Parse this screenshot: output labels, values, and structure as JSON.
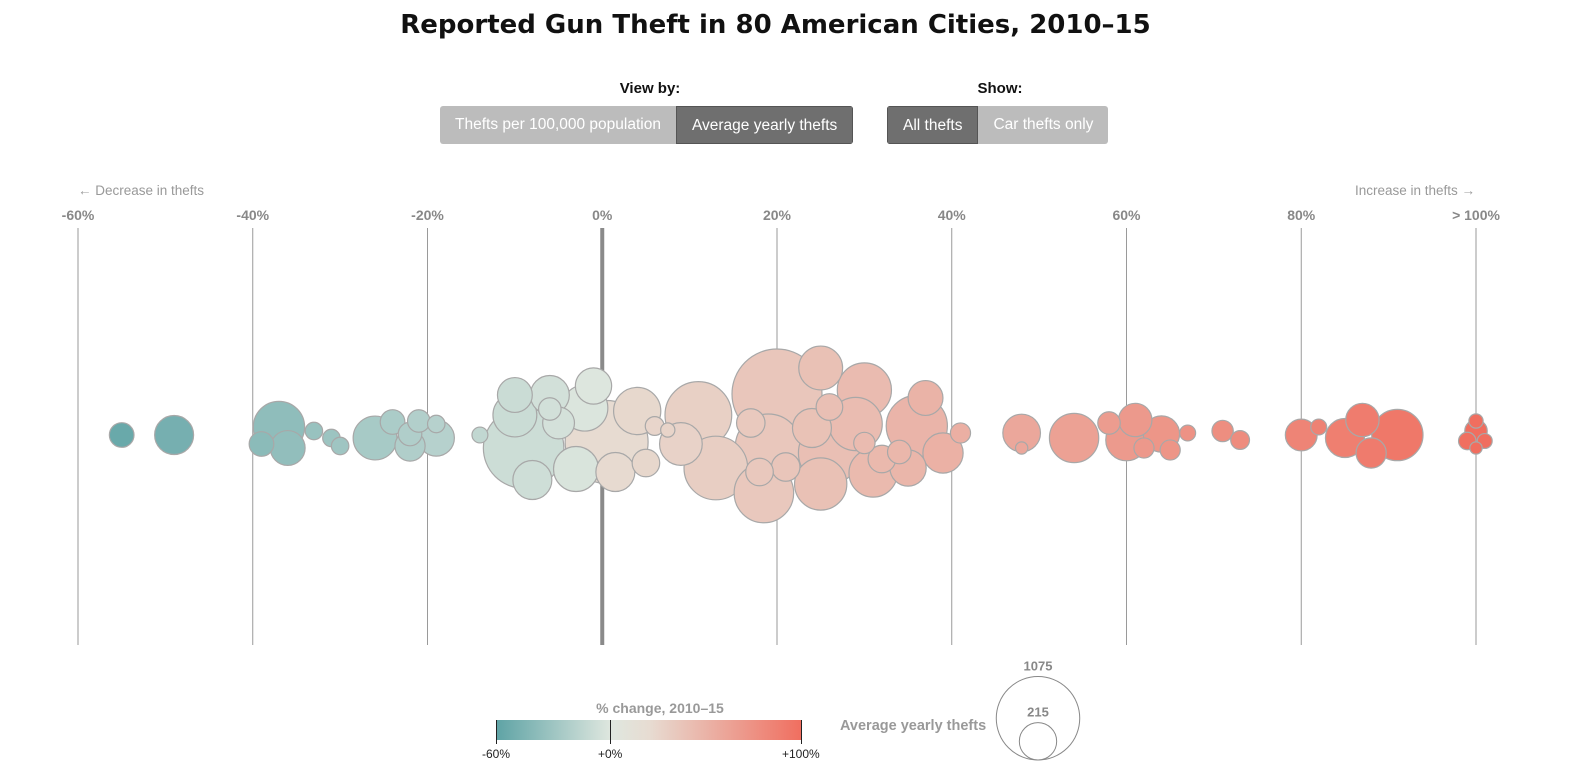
{
  "title": "Reported Gun Theft in 80 American Cities, 2010–15",
  "controls": {
    "view_by_label": "View by:",
    "view_by_options": [
      "Thefts per 100,000 population",
      "Average yearly thefts"
    ],
    "view_by_selected": "Average yearly thefts",
    "show_label": "Show:",
    "show_options": [
      "All thefts",
      "Car thefts only"
    ],
    "show_selected": "All thefts"
  },
  "axis": {
    "decrease_label": "← Decrease in thefts",
    "increase_label": "Increase in thefts →",
    "ticks": [
      "-60%",
      "-40%",
      "-20%",
      "0%",
      "20%",
      "40%",
      "60%",
      "80%",
      "> 100%"
    ],
    "tick_values": [
      -60,
      -40,
      -20,
      0,
      20,
      40,
      60,
      80,
      100
    ]
  },
  "legend": {
    "color_title": "% change, 2010–15",
    "color_labels": [
      "-60%",
      "+0%",
      "+100%"
    ],
    "color_stops": [
      "#5ea3a5",
      "#dfe7df",
      "#e7dcd2",
      "#f06e5f"
    ],
    "size_title": "Average yearly thefts",
    "size_values": [
      1075,
      215
    ]
  },
  "chart_data": {
    "type": "scatter",
    "xlabel": "% change, 2010–15",
    "xlim": [
      -60,
      100
    ],
    "size_label": "Average yearly thefts",
    "points": [
      {
        "x": -55,
        "y": 0,
        "size": 60
      },
      {
        "x": -49,
        "y": 0,
        "size": 150
      },
      {
        "x": -37,
        "y": 8,
        "size": 260
      },
      {
        "x": -39,
        "y": -9,
        "size": 60
      },
      {
        "x": -36,
        "y": -13,
        "size": 120
      },
      {
        "x": -33,
        "y": 4,
        "size": 30
      },
      {
        "x": -31,
        "y": -3,
        "size": 30
      },
      {
        "x": -30,
        "y": -11,
        "size": 30
      },
      {
        "x": -26,
        "y": -3,
        "size": 190
      },
      {
        "x": -24,
        "y": 13,
        "size": 60
      },
      {
        "x": -22,
        "y": 1,
        "size": 55
      },
      {
        "x": -22,
        "y": -11,
        "size": 90
      },
      {
        "x": -21,
        "y": 14,
        "size": 50
      },
      {
        "x": -19,
        "y": -3,
        "size": 130
      },
      {
        "x": -19,
        "y": 11,
        "size": 30
      },
      {
        "x": -14,
        "y": 0,
        "size": 25
      },
      {
        "x": -10,
        "y": 40,
        "size": 120
      },
      {
        "x": -10,
        "y": 20,
        "size": 190
      },
      {
        "x": -9,
        "y": -13,
        "size": 640
      },
      {
        "x": -8,
        "y": -45,
        "size": 150
      },
      {
        "x": -6,
        "y": 40,
        "size": 150
      },
      {
        "x": -6,
        "y": 26,
        "size": 50
      },
      {
        "x": -5,
        "y": 12,
        "size": 100
      },
      {
        "x": -3,
        "y": -34,
        "size": 200
      },
      {
        "x": -2,
        "y": 27,
        "size": 210
      },
      {
        "x": -1,
        "y": 49,
        "size": 130
      },
      {
        "x": 0.5,
        "y": -7,
        "size": 680
      },
      {
        "x": 1.5,
        "y": -37,
        "size": 150
      },
      {
        "x": 4,
        "y": 24,
        "size": 220
      },
      {
        "x": 5,
        "y": -28,
        "size": 75
      },
      {
        "x": 6,
        "y": 9,
        "size": 35
      },
      {
        "x": 7.5,
        "y": 5,
        "size": 20
      },
      {
        "x": 9,
        "y": -9,
        "size": 180
      },
      {
        "x": 11,
        "y": 20,
        "size": 440
      },
      {
        "x": 13,
        "y": -33,
        "size": 400
      },
      {
        "x": 17,
        "y": 12,
        "size": 80
      },
      {
        "x": 18,
        "y": -37,
        "size": 75
      },
      {
        "x": 18.5,
        "y": -58,
        "size": 350
      },
      {
        "x": 19,
        "y": -12,
        "size": 430
      },
      {
        "x": 20,
        "y": 41,
        "size": 800
      },
      {
        "x": 21,
        "y": -32,
        "size": 80
      },
      {
        "x": 24,
        "y": 7,
        "size": 150
      },
      {
        "x": 25,
        "y": 67,
        "size": 190
      },
      {
        "x": 25,
        "y": -49,
        "size": 270
      },
      {
        "x": 26,
        "y": 28,
        "size": 70
      },
      {
        "x": 26,
        "y": -18,
        "size": 380
      },
      {
        "x": 29,
        "y": 11,
        "size": 280
      },
      {
        "x": 30,
        "y": 45,
        "size": 290
      },
      {
        "x": 30,
        "y": -8,
        "size": 45
      },
      {
        "x": 31,
        "y": -38,
        "size": 230
      },
      {
        "x": 32,
        "y": -24,
        "size": 75
      },
      {
        "x": 34,
        "y": -17,
        "size": 55
      },
      {
        "x": 35,
        "y": -33,
        "size": 130
      },
      {
        "x": 36,
        "y": 9,
        "size": 370
      },
      {
        "x": 37,
        "y": 37,
        "size": 120
      },
      {
        "x": 39,
        "y": -18,
        "size": 160
      },
      {
        "x": 41,
        "y": 2,
        "size": 40
      },
      {
        "x": 48,
        "y": 2,
        "size": 140
      },
      {
        "x": 48,
        "y": -13,
        "size": 15
      },
      {
        "x": 54,
        "y": -3,
        "size": 240
      },
      {
        "x": 58,
        "y": 12,
        "size": 50
      },
      {
        "x": 60,
        "y": -5,
        "size": 170
      },
      {
        "x": 61,
        "y": 15,
        "size": 110
      },
      {
        "x": 62,
        "y": -13,
        "size": 40
      },
      {
        "x": 64,
        "y": 1,
        "size": 130
      },
      {
        "x": 65,
        "y": -15,
        "size": 40
      },
      {
        "x": 67,
        "y": 2,
        "size": 25
      },
      {
        "x": 71,
        "y": 4,
        "size": 45
      },
      {
        "x": 73,
        "y": -5,
        "size": 35
      },
      {
        "x": 80,
        "y": 0,
        "size": 100
      },
      {
        "x": 82,
        "y": 8,
        "size": 25
      },
      {
        "x": 85,
        "y": -3,
        "size": 150
      },
      {
        "x": 87,
        "y": 15,
        "size": 110
      },
      {
        "x": 88,
        "y": -18,
        "size": 90
      },
      {
        "x": 91,
        "y": 0,
        "size": 260
      },
      {
        "x": 100,
        "y": 14,
        "size": 20
      },
      {
        "x": 100,
        "y": 4,
        "size": 50
      },
      {
        "x": 99,
        "y": -6,
        "size": 30
      },
      {
        "x": 101,
        "y": -6,
        "size": 22
      },
      {
        "x": 100,
        "y": -13,
        "size": 15
      }
    ]
  }
}
